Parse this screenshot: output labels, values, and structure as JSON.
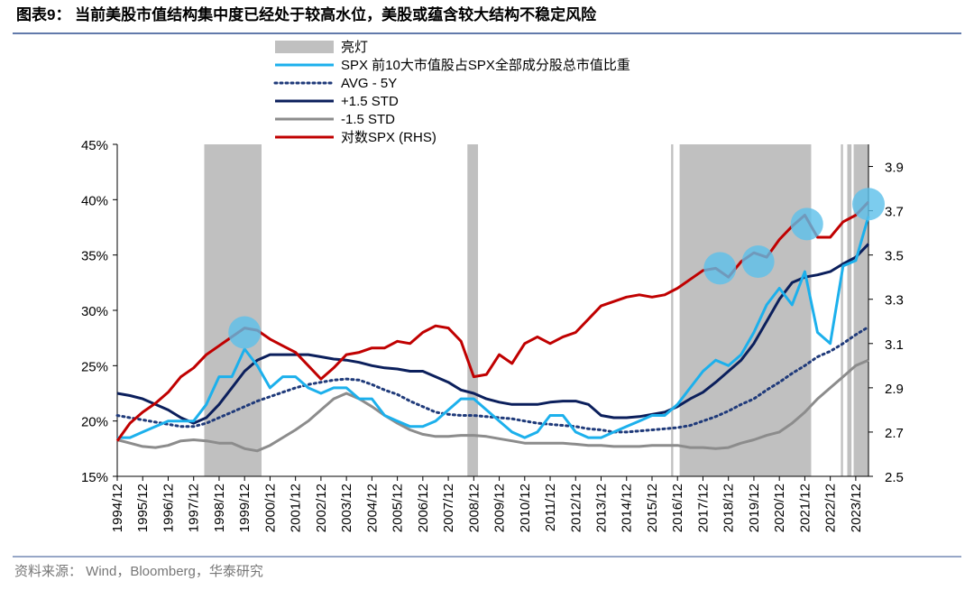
{
  "chart_data": {
    "type": "line",
    "title": "图表9：  当前美股市值结构集中度已经处于较高水位，美股或蕴含较大结构不稳定风险",
    "source": "资料来源：  Wind，Bloomberg，华泰研究",
    "x": [
      "1994/12",
      "1995/06",
      "1995/12",
      "1996/06",
      "1996/12",
      "1997/06",
      "1997/12",
      "1998/06",
      "1998/12",
      "1999/06",
      "1999/12",
      "2000/06",
      "2000/12",
      "2001/06",
      "2001/12",
      "2002/06",
      "2002/12",
      "2003/06",
      "2003/12",
      "2004/06",
      "2004/12",
      "2005/06",
      "2005/12",
      "2006/06",
      "2006/12",
      "2007/06",
      "2007/12",
      "2008/06",
      "2008/12",
      "2009/06",
      "2009/12",
      "2010/06",
      "2010/12",
      "2011/06",
      "2011/12",
      "2012/06",
      "2012/12",
      "2013/06",
      "2013/12",
      "2014/06",
      "2014/12",
      "2015/06",
      "2015/12",
      "2016/06",
      "2016/12",
      "2017/06",
      "2017/12",
      "2018/06",
      "2018/12",
      "2019/06",
      "2019/12",
      "2020/06",
      "2020/12",
      "2021/06",
      "2021/12",
      "2022/06",
      "2022/12",
      "2023/06",
      "2023/12",
      "2024/06"
    ],
    "xlim": [
      "1994/12",
      "2024/06"
    ],
    "xticks": [
      "1994/12",
      "1995/12",
      "1996/12",
      "1997/12",
      "1998/12",
      "1999/12",
      "2000/12",
      "2001/12",
      "2002/12",
      "2003/12",
      "2004/12",
      "2005/12",
      "2006/12",
      "2007/12",
      "2008/12",
      "2009/12",
      "2010/12",
      "2011/12",
      "2012/12",
      "2013/12",
      "2014/12",
      "2015/12",
      "2016/12",
      "2017/12",
      "2018/12",
      "2019/12",
      "2020/12",
      "2021/12",
      "2022/12",
      "2023/12"
    ],
    "ylim": [
      15,
      45
    ],
    "yticks": [
      {
        "value": 15,
        "label": "15%"
      },
      {
        "value": 20,
        "label": "20%"
      },
      {
        "value": 25,
        "label": "25%"
      },
      {
        "value": 30,
        "label": "30%"
      },
      {
        "value": 35,
        "label": "35%"
      },
      {
        "value": 40,
        "label": "40%"
      },
      {
        "value": 45,
        "label": "45%"
      }
    ],
    "y2lim": [
      2.5,
      4.0
    ],
    "y2ticks": [
      2.5,
      2.7,
      2.9,
      3.1,
      3.3,
      3.5,
      3.7,
      3.9
    ],
    "highlight_name": "亮灯",
    "highlight_color": "#c0c0c0",
    "highlight_periods": [
      [
        "1998/05",
        "2000/08"
      ],
      [
        "2008/09",
        "2009/02"
      ],
      [
        "2016/09",
        "2016/10"
      ],
      [
        "2017/01",
        "2022/03"
      ],
      [
        "2023/05",
        "2023/06"
      ],
      [
        "2023/08",
        "2023/10"
      ],
      [
        "2023/11",
        "2024/06"
      ]
    ],
    "highlight_circles": [
      {
        "x": "1999/12",
        "y2": 3.15
      },
      {
        "x": "2018/08",
        "y2": 3.44
      },
      {
        "x": "2020/02",
        "y2": 3.47
      },
      {
        "x": "2022/01",
        "y2": 3.64
      },
      {
        "x": "2024/06",
        "y2": 3.73
      }
    ],
    "circle_color": "#5bbfea",
    "series": [
      {
        "name": "SPX 前10大市值股占SPX全部成分股总市值比重",
        "color": "#1cb0ec",
        "style": "solid",
        "values": [
          18.5,
          18.5,
          19,
          19.5,
          20,
          20,
          20,
          21.5,
          24,
          24,
          26.5,
          25,
          23,
          24,
          24,
          23,
          22.5,
          23,
          23,
          22,
          22,
          20.5,
          20,
          19.5,
          19.5,
          20,
          21,
          22,
          22,
          21,
          20,
          19,
          18.5,
          19,
          20.5,
          20.5,
          19,
          18.5,
          18.5,
          19,
          19.5,
          20,
          20.5,
          20.5,
          21.5,
          23,
          24.5,
          25.5,
          25,
          26,
          28,
          30.5,
          32,
          30.5,
          33.5,
          28,
          27,
          34,
          34.5,
          38.5
        ]
      },
      {
        "name": "AVG - 5Y",
        "color": "#1f3a7a",
        "style": "dotted",
        "values": [
          20.5,
          20.3,
          20.1,
          19.9,
          19.7,
          19.5,
          19.5,
          19.8,
          20.3,
          20.8,
          21.3,
          21.8,
          22.2,
          22.6,
          23,
          23.3,
          23.5,
          23.7,
          23.8,
          23.7,
          23.3,
          22.8,
          22.4,
          21.8,
          21.3,
          20.8,
          20.6,
          20.5,
          20.5,
          20.4,
          20.3,
          20.2,
          20,
          19.8,
          19.7,
          19.6,
          19.5,
          19.3,
          19.2,
          19,
          19,
          19.1,
          19.2,
          19.3,
          19.4,
          19.6,
          20,
          20.4,
          20.9,
          21.5,
          22,
          22.8,
          23.5,
          24.3,
          25,
          25.8,
          26.3,
          27,
          27.8,
          28.5
        ]
      },
      {
        "name": "+1.5 STD",
        "color": "#0b1f5c",
        "style": "solid",
        "values": [
          22.5,
          22.3,
          22,
          21.5,
          21,
          20.3,
          19.8,
          20.3,
          21.5,
          23,
          24.5,
          25.5,
          26,
          26,
          26,
          26,
          25.8,
          25.6,
          25.5,
          25.3,
          25,
          24.8,
          24.7,
          24.5,
          24.5,
          24,
          23.5,
          22.8,
          22.5,
          22,
          21.7,
          21.5,
          21.5,
          21.5,
          21.7,
          21.8,
          21.8,
          21.5,
          20.5,
          20.3,
          20.3,
          20.4,
          20.6,
          20.8,
          21.3,
          22,
          22.6,
          23.5,
          24.5,
          25.5,
          27,
          29,
          31,
          32.5,
          33,
          33.2,
          33.5,
          34.2,
          34.8,
          36
        ]
      },
      {
        "name": "-1.5 STD",
        "color": "#8c8c8c",
        "style": "solid",
        "values": [
          18.3,
          18,
          17.7,
          17.6,
          17.8,
          18.2,
          18.3,
          18.2,
          18,
          18,
          17.5,
          17.3,
          17.8,
          18.5,
          19.2,
          20,
          21,
          22,
          22.5,
          22,
          21.3,
          20.5,
          19.8,
          19.2,
          18.8,
          18.6,
          18.6,
          18.7,
          18.7,
          18.6,
          18.4,
          18.2,
          18,
          18,
          18,
          18,
          17.9,
          17.8,
          17.8,
          17.7,
          17.7,
          17.7,
          17.8,
          17.8,
          17.8,
          17.6,
          17.6,
          17.5,
          17.6,
          18,
          18.3,
          18.7,
          19,
          19.8,
          20.8,
          22,
          23,
          24,
          25,
          25.5
        ]
      },
      {
        "name": "对数SPX (RHS)",
        "color": "#c00000",
        "style": "solid",
        "axis": "y2",
        "values": [
          2.66,
          2.74,
          2.79,
          2.83,
          2.88,
          2.95,
          2.99,
          3.05,
          3.09,
          3.13,
          3.17,
          3.16,
          3.12,
          3.09,
          3.06,
          3.0,
          2.94,
          2.99,
          3.05,
          3.06,
          3.08,
          3.08,
          3.11,
          3.1,
          3.15,
          3.18,
          3.17,
          3.11,
          2.95,
          2.96,
          3.05,
          3.01,
          3.1,
          3.13,
          3.1,
          3.13,
          3.15,
          3.21,
          3.27,
          3.29,
          3.31,
          3.32,
          3.31,
          3.32,
          3.35,
          3.39,
          3.43,
          3.44,
          3.4,
          3.47,
          3.51,
          3.49,
          3.57,
          3.63,
          3.68,
          3.58,
          3.58,
          3.65,
          3.68,
          3.74
        ]
      }
    ]
  }
}
